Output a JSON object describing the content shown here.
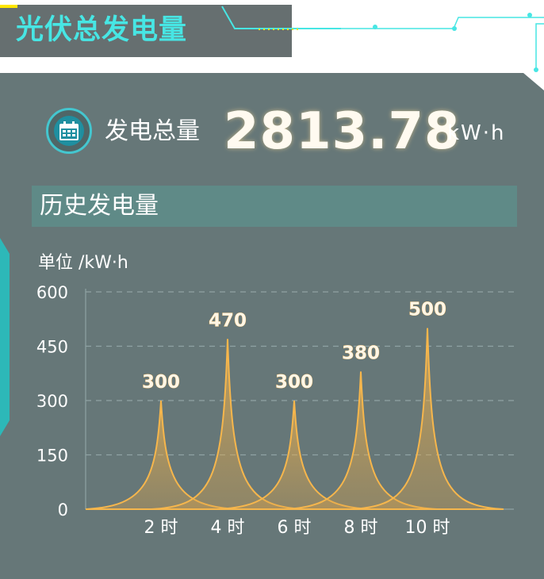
{
  "header": {
    "title": "光伏总发电量"
  },
  "summary": {
    "label": "发电总量",
    "value": "2813.78",
    "unit": "kW·h",
    "icon": "calendar-icon"
  },
  "section": {
    "title": "历史发电量"
  },
  "colors": {
    "panel": "#667778",
    "accent": "#47e6e4",
    "peak": "#f6b64c"
  },
  "chart_data": {
    "type": "area",
    "ylabel": "单位 /kW·h",
    "ylim": [
      0,
      600
    ],
    "yticks": [
      0,
      150,
      300,
      450,
      600
    ],
    "grid": true,
    "categories": [
      "2 时",
      "4 时",
      "6 时",
      "8 时",
      "10 时"
    ],
    "values": [
      300,
      470,
      300,
      380,
      500
    ],
    "data_labels": [
      "300",
      "470",
      "300",
      "380",
      "500"
    ]
  }
}
